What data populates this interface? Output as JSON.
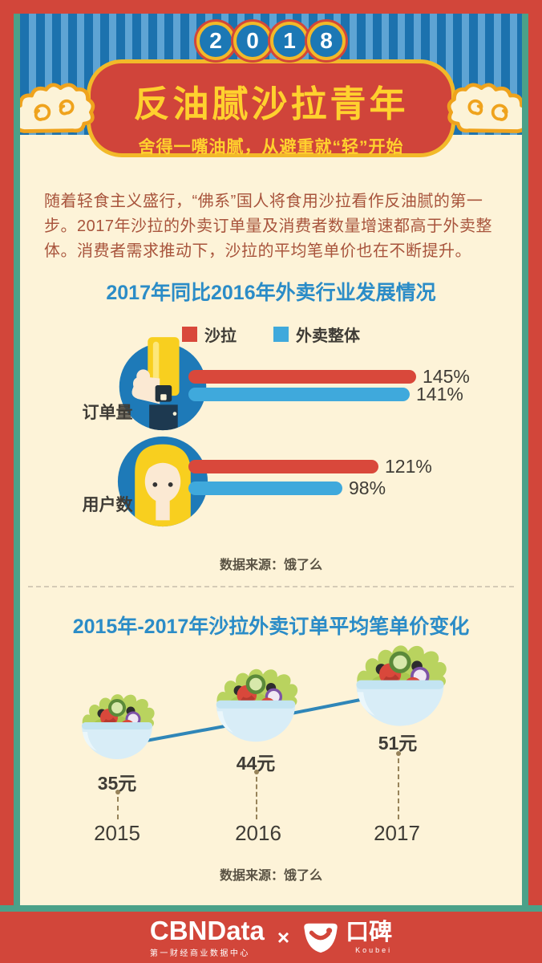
{
  "header": {
    "year_digits": [
      "2",
      "0",
      "1",
      "8"
    ],
    "title": "反油腻沙拉青年",
    "subtitle": "舍得一嘴油腻，从避重就“轻”开始"
  },
  "intro": {
    "text": "随着轻食主义盛行，“佛系”国人将食用沙拉看作反油腻的第一步。2017年沙拉的外卖订单量及消费者数量增速都高于外卖整体。消费者需求推动下，沙拉的平均笔单价也在不断提升。"
  },
  "chart_data": [
    {
      "type": "bar",
      "orientation": "horizontal",
      "title": "2017年同比2016年外卖行业发展情况",
      "categories": [
        "订单量",
        "用户数"
      ],
      "series": [
        {
          "name": "沙拉",
          "color": "#d9483b",
          "values": [
            145,
            121
          ],
          "labels": [
            "145%",
            "121%"
          ]
        },
        {
          "name": "外卖整体",
          "color": "#3fa9dc",
          "values": [
            141,
            98
          ],
          "labels": [
            "141%",
            "98%"
          ]
        }
      ],
      "unit": "%",
      "legend_position": "top",
      "source": "数据来源：饿了么"
    },
    {
      "type": "line",
      "title": "2015年-2017年沙拉外卖订单平均笔单价变化",
      "x": [
        "2015",
        "2016",
        "2017"
      ],
      "values": [
        35,
        44,
        51
      ],
      "unit": "元",
      "points": [
        {
          "year": "2015",
          "value": 35,
          "label": "35元"
        },
        {
          "year": "2016",
          "value": 44,
          "label": "44元"
        },
        {
          "year": "2017",
          "value": 51,
          "label": "51元"
        }
      ],
      "source": "数据来源：饿了么"
    }
  ],
  "footer": {
    "cbndata": "CBNData",
    "cbndata_sub": "第一财经商业数据中心",
    "cross": "×",
    "koubei": "口碑",
    "koubei_sub": "Koubei"
  },
  "colors": {
    "frame_red": "#d2463a",
    "teal_border": "#4ba189",
    "cream_bg": "#fdf3d8",
    "accent_yellow": "#f2b929",
    "title_yellow": "#ffd12e",
    "heading_blue": "#2b8cc7",
    "salad_red": "#d9483b",
    "delivery_blue": "#3fa9dc",
    "stripe_dark": "#1c72ae",
    "stripe_light": "#5ea4d4"
  }
}
